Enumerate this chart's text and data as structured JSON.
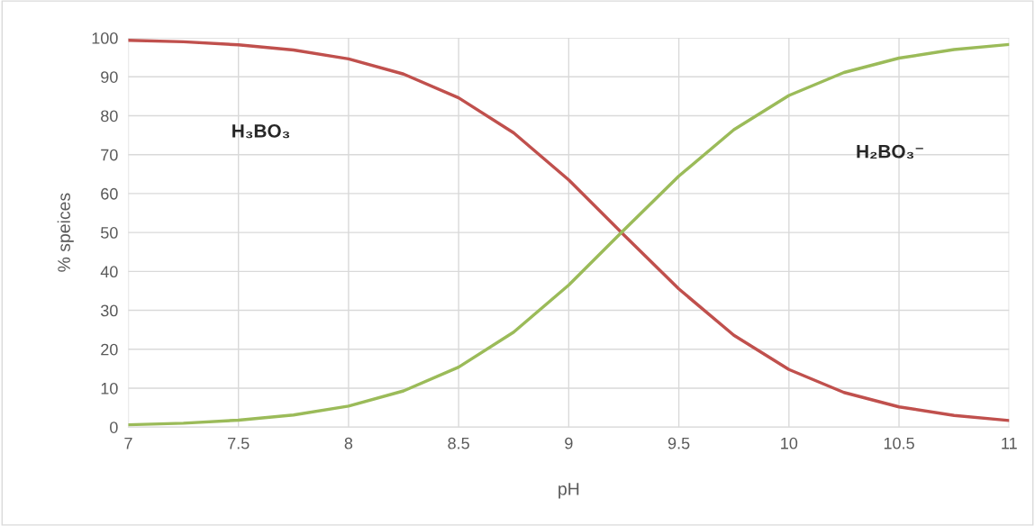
{
  "chart_data": {
    "type": "line",
    "xlabel": "pH",
    "ylabel": "% speices",
    "xlim": [
      7,
      11
    ],
    "xticks": [
      7,
      7.5,
      8,
      8.5,
      9,
      9.5,
      10,
      10.5,
      11
    ],
    "ylim": [
      0,
      100
    ],
    "yticks": [
      0,
      10,
      20,
      30,
      40,
      50,
      60,
      70,
      80,
      90,
      100
    ],
    "grid": true,
    "marker": "none",
    "line_style": "solid",
    "x": [
      7,
      7.25,
      7.5,
      7.75,
      8,
      8.25,
      8.5,
      8.75,
      9,
      9.25,
      9.5,
      9.75,
      10,
      10.25,
      10.5,
      10.75,
      11
    ],
    "series": [
      {
        "color": "#c0504d",
        "values": [
          99.4,
          99.0,
          98.2,
          96.9,
          94.6,
          90.7,
          84.6,
          75.6,
          63.5,
          49.4,
          35.5,
          23.6,
          14.8,
          8.9,
          5.2,
          3.0,
          1.7
        ]
      },
      {
        "color": "#9bbb59",
        "values": [
          0.6,
          1.0,
          1.8,
          3.1,
          5.4,
          9.3,
          15.4,
          24.4,
          36.5,
          50.6,
          64.5,
          76.4,
          85.2,
          91.1,
          94.8,
          97.0,
          98.3
        ]
      }
    ],
    "annotations": [
      "H₃BO₃",
      "H₂BO₃⁻"
    ]
  }
}
